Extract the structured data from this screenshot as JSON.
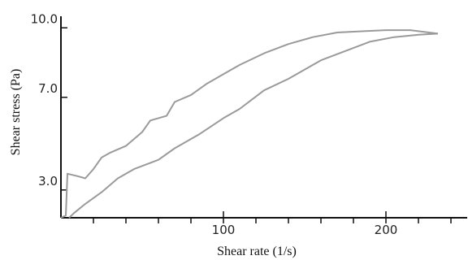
{
  "chart_data": {
    "type": "line",
    "title": "",
    "xlabel": "Shear rate (1/s)",
    "ylabel": "Shear stress (Pa)",
    "xlim": [
      0,
      250
    ],
    "ylim": [
      1.8,
      10.5
    ],
    "x_ticks": [
      {
        "value": 100,
        "label": "100"
      },
      {
        "value": 200,
        "label": "200"
      }
    ],
    "x_minor_ticks": [
      20,
      40,
      60,
      80,
      100,
      120,
      140,
      160,
      180,
      200,
      220,
      240
    ],
    "y_ticks": [
      {
        "value": 3.0,
        "label": "3.0"
      },
      {
        "value": 7.0,
        "label": "7.0"
      },
      {
        "value": 10.0,
        "label": "10.0"
      }
    ],
    "series": [
      {
        "values": [
          [
            5,
            1.8
          ],
          [
            8,
            2.0
          ],
          [
            15,
            2.4
          ],
          [
            25,
            2.9
          ],
          [
            35,
            3.5
          ],
          [
            45,
            3.9
          ],
          [
            60,
            4.3
          ],
          [
            70,
            4.8
          ],
          [
            85,
            5.4
          ],
          [
            100,
            6.1
          ],
          [
            110,
            6.5
          ],
          [
            125,
            7.3
          ],
          [
            140,
            7.8
          ],
          [
            150,
            8.2
          ],
          [
            160,
            8.6
          ],
          [
            175,
            9.0
          ],
          [
            190,
            9.4
          ],
          [
            205,
            9.6
          ],
          [
            220,
            9.7
          ],
          [
            232,
            9.75
          ]
        ]
      },
      {
        "values": [
          [
            0,
            1.8
          ],
          [
            3,
            1.9
          ],
          [
            4,
            3.7
          ],
          [
            10,
            3.6
          ],
          [
            15,
            3.5
          ],
          [
            20,
            3.9
          ],
          [
            25,
            4.4
          ],
          [
            30,
            4.6
          ],
          [
            40,
            4.9
          ],
          [
            50,
            5.5
          ],
          [
            55,
            6.0
          ],
          [
            65,
            6.2
          ],
          [
            70,
            6.8
          ],
          [
            80,
            7.1
          ],
          [
            90,
            7.6
          ],
          [
            100,
            8.0
          ],
          [
            110,
            8.4
          ],
          [
            125,
            8.9
          ],
          [
            140,
            9.3
          ],
          [
            155,
            9.6
          ],
          [
            170,
            9.8
          ],
          [
            185,
            9.85
          ],
          [
            200,
            9.9
          ],
          [
            215,
            9.9
          ],
          [
            232,
            9.75
          ]
        ]
      }
    ],
    "grid": false,
    "legend": "none"
  }
}
